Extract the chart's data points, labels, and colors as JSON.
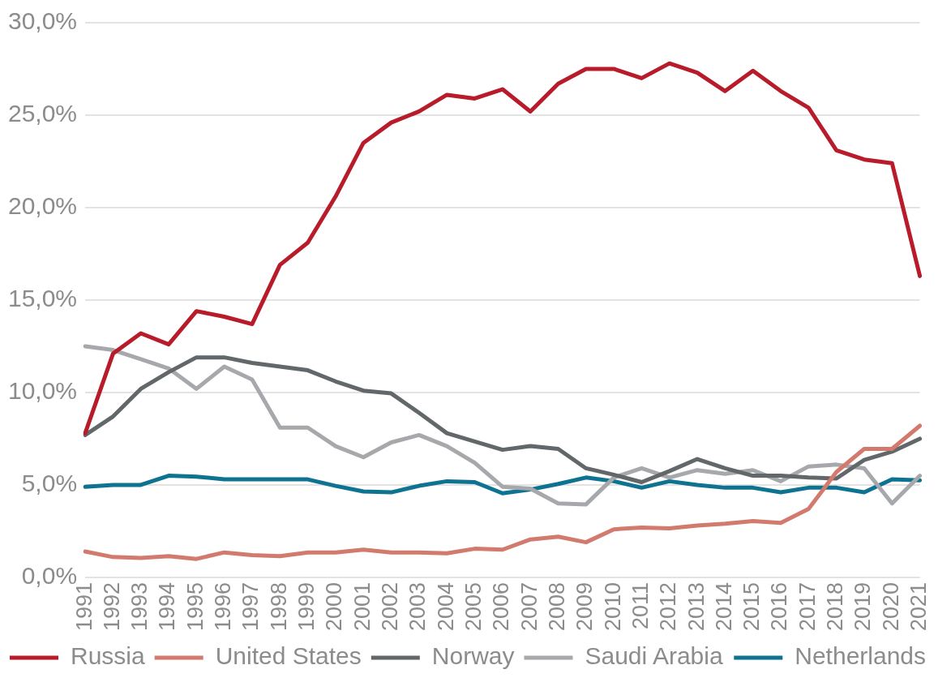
{
  "chart_data": {
    "type": "line",
    "categories": [
      "1991",
      "1992",
      "1993",
      "1994",
      "1995",
      "1996",
      "1997",
      "1998",
      "1999",
      "2000",
      "2001",
      "2002",
      "2003",
      "2004",
      "2005",
      "2006",
      "2007",
      "2008",
      "2009",
      "2010",
      "2011",
      "2012",
      "2013",
      "2014",
      "2015",
      "2016",
      "2017",
      "2018",
      "2019",
      "2020",
      "2021"
    ],
    "series": [
      {
        "name": "Russia",
        "color": "#b81c2b",
        "values": [
          7.8,
          12.1,
          13.2,
          12.6,
          14.4,
          14.1,
          13.7,
          16.9,
          18.1,
          20.6,
          23.5,
          24.6,
          25.2,
          26.1,
          25.9,
          26.4,
          25.2,
          26.7,
          27.5,
          27.5,
          27.0,
          27.8,
          27.3,
          26.3,
          27.4,
          26.3,
          25.4,
          23.1,
          22.6,
          22.4,
          16.3
        ]
      },
      {
        "name": "United States",
        "color": "#d27a6d",
        "values": [
          1.4,
          1.1,
          1.05,
          1.15,
          1.0,
          1.35,
          1.2,
          1.15,
          1.35,
          1.35,
          1.5,
          1.35,
          1.35,
          1.3,
          1.55,
          1.5,
          2.05,
          2.2,
          1.9,
          2.6,
          2.7,
          2.65,
          2.8,
          2.9,
          3.05,
          2.95,
          3.7,
          5.7,
          6.95,
          6.95,
          8.2
        ]
      },
      {
        "name": "Norway",
        "color": "#62676a",
        "values": [
          7.7,
          8.7,
          10.2,
          11.1,
          11.9,
          11.9,
          11.6,
          11.4,
          11.2,
          10.6,
          10.1,
          9.95,
          8.9,
          7.8,
          7.35,
          6.9,
          7.1,
          6.95,
          5.9,
          5.55,
          5.15,
          5.75,
          6.4,
          5.9,
          5.5,
          5.5,
          5.4,
          5.35,
          6.35,
          6.8,
          7.5
        ]
      },
      {
        "name": "Saudi Arabia",
        "color": "#a6a8ab",
        "values": [
          12.5,
          12.3,
          11.8,
          11.3,
          10.2,
          11.4,
          10.7,
          8.1,
          8.1,
          7.1,
          6.5,
          7.3,
          7.7,
          7.1,
          6.2,
          4.9,
          4.8,
          4.0,
          3.95,
          5.4,
          5.9,
          5.4,
          5.8,
          5.6,
          5.8,
          5.2,
          6.0,
          6.1,
          5.9,
          4.0,
          5.5
        ]
      },
      {
        "name": "Netherlands",
        "color": "#0e7391",
        "values": [
          4.9,
          5.0,
          5.0,
          5.5,
          5.45,
          5.3,
          5.3,
          5.3,
          5.3,
          4.95,
          4.65,
          4.6,
          4.95,
          5.2,
          5.15,
          4.55,
          4.75,
          5.05,
          5.4,
          5.2,
          4.85,
          5.2,
          5.0,
          4.85,
          4.85,
          4.6,
          4.85,
          4.85,
          4.6,
          5.3,
          5.25
        ]
      }
    ],
    "ylim": [
      0,
      30
    ],
    "yticks": [
      {
        "value": 0,
        "label": "0,0%"
      },
      {
        "value": 5,
        "label": "5,0%"
      },
      {
        "value": 10,
        "label": "10,0%"
      },
      {
        "value": 15,
        "label": "15,0%"
      },
      {
        "value": 20,
        "label": "20,0%"
      },
      {
        "value": 25,
        "label": "25,0%"
      },
      {
        "value": 30,
        "label": "30,0%"
      }
    ],
    "grid": "y",
    "legend": "bottom",
    "marker": "none",
    "line_style": "solid"
  }
}
